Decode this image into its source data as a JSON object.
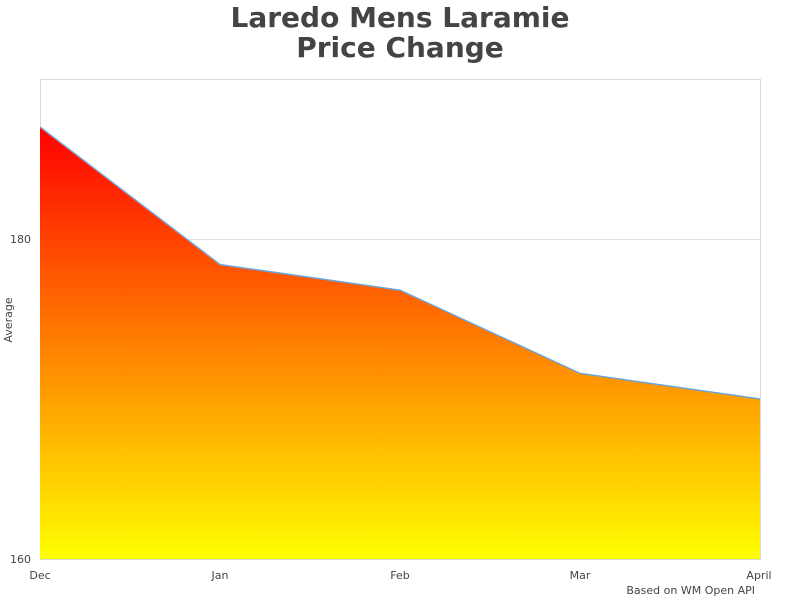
{
  "chart": {
    "title_line1": "Laredo Mens Laramie",
    "title_line2": "Price Change",
    "ylabel": "Average",
    "credit": "Based on WM Open API",
    "gradient": {
      "top": "#ff0000",
      "mid": "#ff7f00",
      "bottom": "#ffff00"
    },
    "line_color": "#6aa4d8",
    "grid_color": "#e0e0e0",
    "border_color": "#d9d9d9"
  },
  "chart_data": {
    "type": "area",
    "title": "Laredo Mens Laramie Price Change",
    "xlabel": "",
    "ylabel": "Average",
    "categories": [
      "Dec",
      "Jan",
      "Feb",
      "Mar",
      "April"
    ],
    "values": [
      187.0,
      178.4,
      176.8,
      171.6,
      170.0
    ],
    "ylim": [
      160,
      190
    ],
    "yticks": [
      160,
      180
    ],
    "grid": true,
    "legend": null,
    "annotations": [
      "Based on WM Open API"
    ]
  }
}
